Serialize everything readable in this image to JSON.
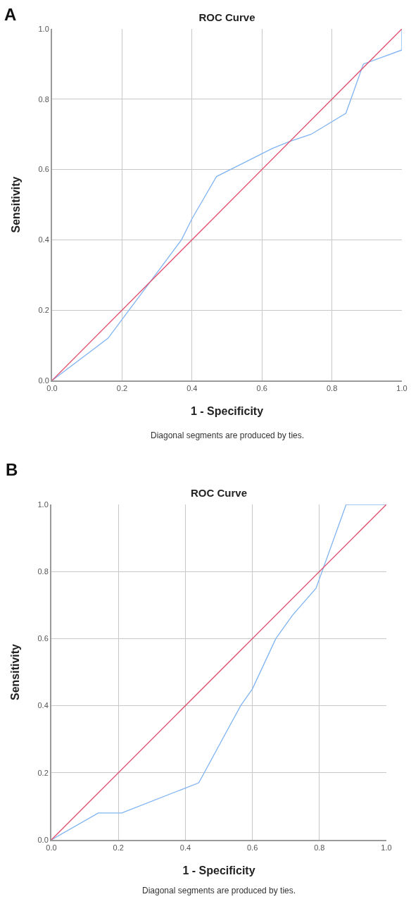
{
  "chart_data": [
    {
      "type": "line",
      "title": "ROC Curve",
      "xlabel": "1 - Specificity",
      "ylabel": "Sensitivity",
      "annotations": [
        "A",
        "Diagonal segments are produced by ties."
      ],
      "series": [
        {
          "color": "#80b4f2",
          "x": [
            0,
            0.16,
            0.22,
            0.28,
            0.37,
            0.4,
            0.47,
            0.55,
            0.63,
            0.68,
            0.74,
            0.84,
            0.89,
            1.0,
            1.0
          ],
          "values": [
            0,
            0.12,
            0.2,
            0.28,
            0.4,
            0.46,
            0.58,
            0.62,
            0.66,
            0.68,
            0.7,
            0.76,
            0.9,
            0.94,
            1.0
          ]
        },
        {
          "color": "#e0506e",
          "x": [
            0,
            1
          ],
          "values": [
            0,
            1
          ]
        }
      ],
      "xlim": [
        0,
        1
      ],
      "ylim": [
        0,
        1
      ],
      "xticks": [
        {
          "value": 0,
          "label": "0.0"
        },
        {
          "value": 0.2,
          "label": "0.2"
        },
        {
          "value": 0.4,
          "label": "0.4"
        },
        {
          "value": 0.6,
          "label": "0.6"
        },
        {
          "value": 0.8,
          "label": "0.8"
        },
        {
          "value": 1,
          "label": "1.0"
        }
      ],
      "yticks": [
        {
          "value": 0,
          "label": "0.0"
        },
        {
          "value": 0.2,
          "label": "0.2"
        },
        {
          "value": 0.4,
          "label": "0.4"
        },
        {
          "value": 0.6,
          "label": "0.6"
        },
        {
          "value": 0.8,
          "label": "0.8"
        },
        {
          "value": 1,
          "label": "1.0"
        }
      ],
      "grid": true,
      "marker": "none",
      "line_style": "solid"
    },
    {
      "type": "line",
      "title": "ROC Curve",
      "xlabel": "1 - Specificity",
      "ylabel": "Sensitivity",
      "annotations": [
        "B",
        "Diagonal segments are produced by ties."
      ],
      "series": [
        {
          "color": "#80b4f2",
          "x": [
            0,
            0.14,
            0.21,
            0.44,
            0.565,
            0.6,
            0.67,
            0.72,
            0.79,
            0.88,
            1.0
          ],
          "values": [
            0,
            0.08,
            0.08,
            0.17,
            0.4,
            0.45,
            0.6,
            0.67,
            0.75,
            1.0,
            1.0
          ]
        },
        {
          "color": "#e0506e",
          "x": [
            0,
            1
          ],
          "values": [
            0,
            1
          ]
        }
      ],
      "xlim": [
        0,
        1
      ],
      "ylim": [
        0,
        1
      ],
      "xticks": [
        {
          "value": 0,
          "label": "0.0"
        },
        {
          "value": 0.2,
          "label": "0.2"
        },
        {
          "value": 0.4,
          "label": "0.4"
        },
        {
          "value": 0.6,
          "label": "0.6"
        },
        {
          "value": 0.8,
          "label": "0.8"
        },
        {
          "value": 1,
          "label": "1.0"
        }
      ],
      "yticks": [
        {
          "value": 0,
          "label": "0.0"
        },
        {
          "value": 0.2,
          "label": "0.2"
        },
        {
          "value": 0.4,
          "label": "0.4"
        },
        {
          "value": 0.6,
          "label": "0.6"
        },
        {
          "value": 0.8,
          "label": "0.8"
        },
        {
          "value": 1,
          "label": "1.0"
        }
      ],
      "grid": true,
      "marker": "none",
      "line_style": "solid"
    }
  ]
}
